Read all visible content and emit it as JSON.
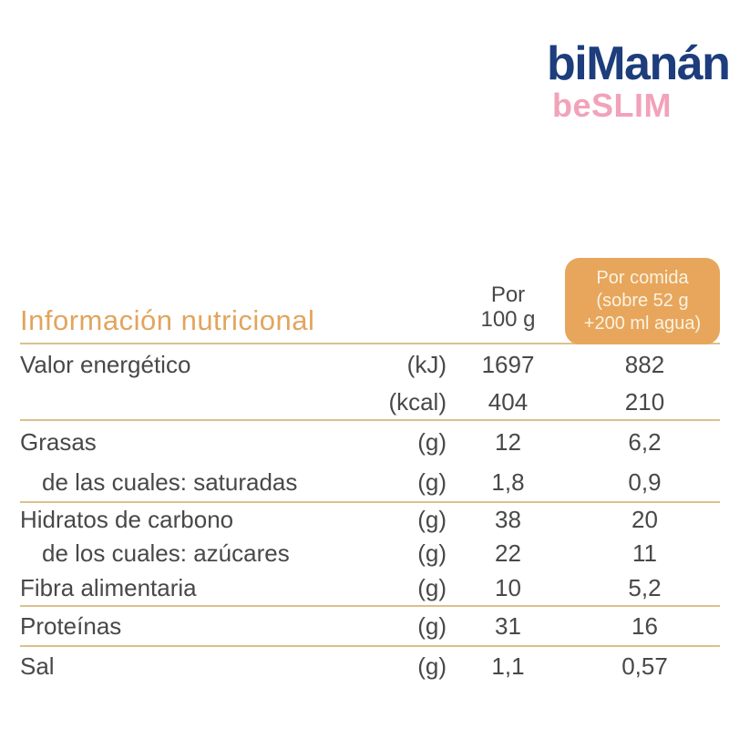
{
  "brand": {
    "name": "biManán",
    "registered": "®",
    "subbrand": "beSLIM"
  },
  "nutrition_table": {
    "title": "Información nutricional",
    "columns": {
      "per_100": {
        "line1": "Por",
        "line2": "100 g"
      },
      "per_serving": {
        "line1": "Por comida",
        "line2": "(sobre 52 g",
        "line3": "+200 ml agua)"
      }
    },
    "rows": [
      {
        "label": "Valor energético",
        "indent": false,
        "unit": "(kJ)",
        "per_100": "1697",
        "per_serving": "882",
        "divider_after": false
      },
      {
        "label": "",
        "indent": false,
        "unit": "(kcal)",
        "per_100": "404",
        "per_serving": "210",
        "divider_after": true
      },
      {
        "label": "Grasas",
        "indent": false,
        "unit": "(g)",
        "per_100": "12",
        "per_serving": "6,2",
        "divider_after": false
      },
      {
        "label": "de las cuales: saturadas",
        "indent": true,
        "unit": "(g)",
        "per_100": "1,8",
        "per_serving": "0,9",
        "divider_after": true
      },
      {
        "label": "Hidratos de carbono",
        "indent": false,
        "unit": "(g)",
        "per_100": "38",
        "per_serving": "20",
        "divider_after": false
      },
      {
        "label": "de los cuales: azúcares",
        "indent": true,
        "unit": "(g)",
        "per_100": "22",
        "per_serving": "11",
        "divider_after": false
      },
      {
        "label": "Fibra alimentaria",
        "indent": false,
        "unit": "(g)",
        "per_100": "10",
        "per_serving": "5,2",
        "divider_after": true
      },
      {
        "label": "Proteínas",
        "indent": false,
        "unit": "(g)",
        "per_100": "31",
        "per_serving": "16",
        "divider_after": true
      },
      {
        "label": "Sal",
        "indent": false,
        "unit": "(g)",
        "per_100": "1,1",
        "per_serving": "0,57",
        "divider_after": false
      }
    ]
  },
  "colors": {
    "brand_blue": "#1d3d7c",
    "brand_pink": "#f2a2ba",
    "accent_orange": "#e7a65c",
    "box_text_cream": "#faf3e0",
    "table_text": "#48484a",
    "divider_tan": "#dcc08c"
  }
}
